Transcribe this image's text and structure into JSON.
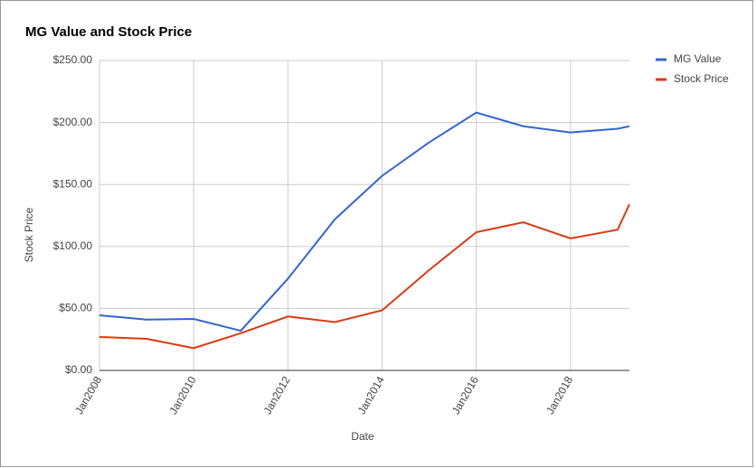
{
  "chart_data": {
    "type": "line",
    "title": "MG Value and Stock Price",
    "x_label": "Date",
    "y_label": "Stock Price",
    "x": [
      "2008-01",
      "2009-01",
      "2010-01",
      "2011-01",
      "2012-01",
      "2013-01",
      "2014-01",
      "2015-01",
      "2016-01",
      "2017-01",
      "2018-01",
      "2019-01",
      "2019-04"
    ],
    "series": [
      {
        "name": "MG Value",
        "color": "#3366cc",
        "values": [
          44.5,
          41,
          41.5,
          32,
          74,
          122,
          157,
          184,
          208,
          197,
          192,
          195,
          197
        ]
      },
      {
        "name": "Stock Price",
        "color": "#dc3912",
        "values": [
          27,
          25.5,
          18,
          30,
          43.5,
          39,
          48.5,
          81,
          111.5,
          119.5,
          106.5,
          113.5,
          134
        ]
      }
    ],
    "xlim": [
      "2008-01",
      "2019-04"
    ],
    "xticks": [
      {
        "value": "2008-01",
        "label": "Jan2008"
      },
      {
        "value": "2010-01",
        "label": "Jan2010"
      },
      {
        "value": "2012-01",
        "label": "Jan2012"
      },
      {
        "value": "2014-01",
        "label": "Jan2014"
      },
      {
        "value": "2016-01",
        "label": "Jan2016"
      },
      {
        "value": "2018-01",
        "label": "Jan2018"
      }
    ],
    "ylim": [
      0,
      250
    ],
    "yticks": [
      {
        "value": 0,
        "label": "$0.00"
      },
      {
        "value": 50,
        "label": "$50.00"
      },
      {
        "value": 100,
        "label": "$100.00"
      },
      {
        "value": 150,
        "label": "$150.00"
      },
      {
        "value": 200,
        "label": "$200.00"
      },
      {
        "value": 250,
        "label": "$250.00"
      }
    ],
    "grid": true,
    "legend": "right"
  }
}
